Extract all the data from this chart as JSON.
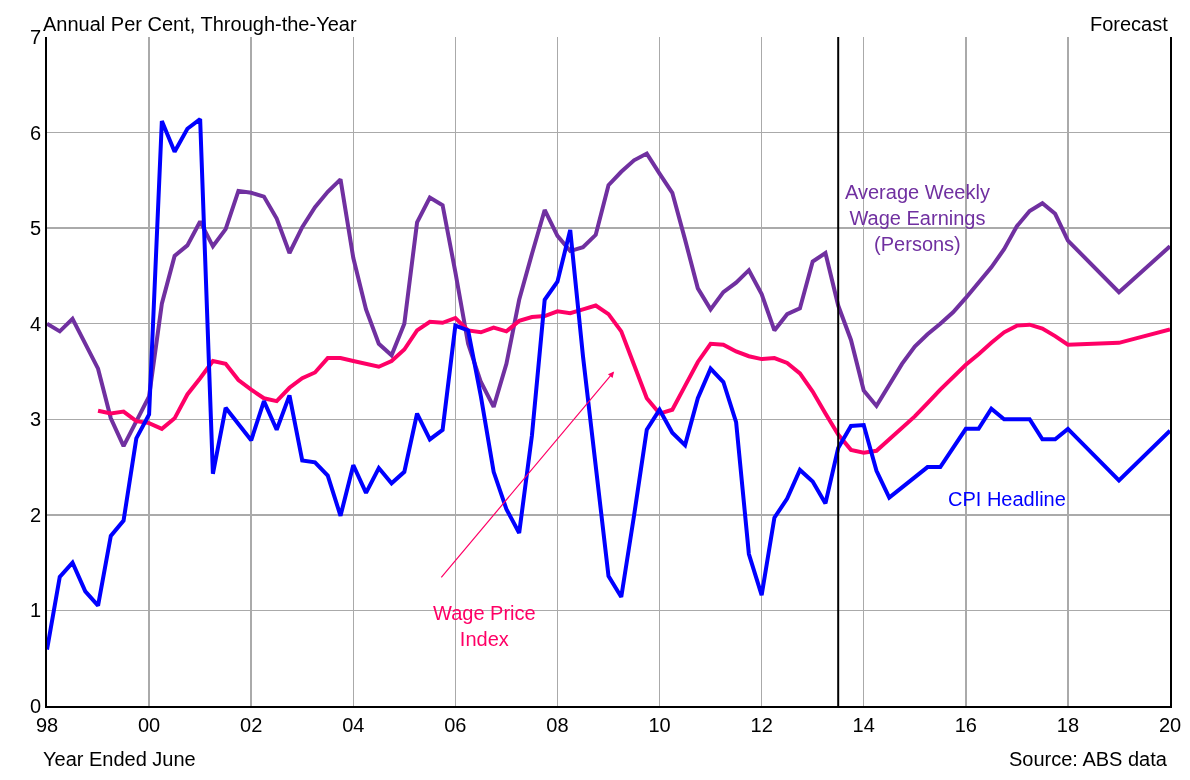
{
  "chart_data": {
    "type": "line",
    "ylabel": "Annual Per Cent, Through-the-Year",
    "xlabel": "Year Ended June",
    "xlim": [
      1998,
      2020
    ],
    "xticks": [
      {
        "value": 1998,
        "label": "98"
      },
      {
        "value": 2000,
        "label": "00"
      },
      {
        "value": 2002,
        "label": "02"
      },
      {
        "value": 2004,
        "label": "04"
      },
      {
        "value": 2006,
        "label": "06"
      },
      {
        "value": 2008,
        "label": "08"
      },
      {
        "value": 2010,
        "label": "10"
      },
      {
        "value": 2012,
        "label": "12"
      },
      {
        "value": 2014,
        "label": "14"
      },
      {
        "value": 2016,
        "label": "16"
      },
      {
        "value": 2018,
        "label": "18"
      },
      {
        "value": 2020,
        "label": "20"
      }
    ],
    "ylim": [
      0,
      7
    ],
    "yticks": [
      0,
      1,
      2,
      3,
      4,
      5,
      6,
      7
    ],
    "grid": true,
    "legend": false,
    "marker": "none",
    "line_style": "solid",
    "ref_lines": [
      {
        "axis": "x",
        "value": 2013.5,
        "color": "#000000"
      }
    ],
    "annotations": [
      "Forecast",
      "Source: ABS data"
    ],
    "series": [
      {
        "name": "Average Weekly\nWage Earnings\n(Persons)",
        "color": "#7030a0",
        "x": [
          1998,
          1998.25,
          1998.5,
          1999,
          1999.25,
          1999.5,
          2000,
          2000.25,
          2000.5,
          2000.75,
          2001,
          2001.25,
          2001.5,
          2001.75,
          2002,
          2002.25,
          2002.5,
          2002.75,
          2003,
          2003.25,
          2003.5,
          2003.75,
          2004,
          2004.25,
          2004.5,
          2004.75,
          2005,
          2005.25,
          2005.5,
          2005.75,
          2006,
          2006.25,
          2006.5,
          2006.75,
          2007,
          2007.25,
          2007.5,
          2007.75,
          2008,
          2008.25,
          2008.5,
          2008.75,
          2009,
          2009.25,
          2009.5,
          2009.75,
          2010,
          2010.25,
          2010.5,
          2010.75,
          2011,
          2011.25,
          2011.5,
          2011.75,
          2012,
          2012.25,
          2012.5,
          2012.75,
          2013,
          2013.25,
          2013.5,
          2013.75,
          2014,
          2014.25,
          2014.75,
          2015,
          2015.25,
          2015.5,
          2015.75,
          2016,
          2016.5,
          2016.75,
          2017,
          2017.25,
          2017.5,
          2017.75,
          2018,
          2019,
          2020
        ],
        "values": [
          4.0,
          3.92,
          4.05,
          3.53,
          3.01,
          2.72,
          3.24,
          4.21,
          4.71,
          4.82,
          5.07,
          4.81,
          4.99,
          5.39,
          5.37,
          5.33,
          5.1,
          4.74,
          5.01,
          5.22,
          5.38,
          5.51,
          4.69,
          4.15,
          3.79,
          3.67,
          4.0,
          5.06,
          5.32,
          5.24,
          4.54,
          3.79,
          3.39,
          3.13,
          3.58,
          4.25,
          4.73,
          5.19,
          4.92,
          4.76,
          4.8,
          4.93,
          5.45,
          5.59,
          5.71,
          5.78,
          5.57,
          5.37,
          4.88,
          4.37,
          4.15,
          4.33,
          4.43,
          4.56,
          4.31,
          3.93,
          4.1,
          4.16,
          4.65,
          4.74,
          4.19,
          3.83,
          3.3,
          3.14,
          3.58,
          3.76,
          3.89,
          4.0,
          4.12,
          4.27,
          4.59,
          4.78,
          5.02,
          5.18,
          5.26,
          5.15,
          4.87,
          4.33,
          4.81
        ]
      },
      {
        "name": "Wage Price\nIndex",
        "color": "#ff0066",
        "x": [
          1999,
          1999.25,
          1999.5,
          1999.75,
          2000,
          2000.25,
          2000.5,
          2000.75,
          2001,
          2001.25,
          2001.5,
          2001.75,
          2002,
          2002.25,
          2002.5,
          2002.75,
          2003,
          2003.25,
          2003.5,
          2003.75,
          2004,
          2004.5,
          2004.75,
          2005,
          2005.25,
          2005.5,
          2005.75,
          2006,
          2006.25,
          2006.5,
          2006.75,
          2007,
          2007.25,
          2007.5,
          2007.75,
          2008,
          2008.25,
          2008.5,
          2008.75,
          2009,
          2009.25,
          2009.5,
          2009.75,
          2010,
          2010.25,
          2010.5,
          2010.75,
          2011,
          2011.25,
          2011.5,
          2011.75,
          2012,
          2012.25,
          2012.5,
          2012.75,
          2013,
          2013.25,
          2013.5,
          2013.75,
          2014,
          2014.25,
          2015,
          2015.25,
          2015.5,
          2016,
          2016.25,
          2016.5,
          2016.75,
          2017,
          2017.25,
          2017.5,
          2017.75,
          2018,
          2019,
          2020
        ],
        "values": [
          3.09,
          3.06,
          3.08,
          2.98,
          2.96,
          2.9,
          3.01,
          3.26,
          3.43,
          3.61,
          3.58,
          3.41,
          3.31,
          3.22,
          3.19,
          3.33,
          3.43,
          3.49,
          3.64,
          3.64,
          3.61,
          3.55,
          3.61,
          3.73,
          3.93,
          4.02,
          4.01,
          4.06,
          3.93,
          3.91,
          3.96,
          3.92,
          4.03,
          4.07,
          4.08,
          4.13,
          4.11,
          4.15,
          4.19,
          4.1,
          3.92,
          3.57,
          3.22,
          3.06,
          3.1,
          3.35,
          3.6,
          3.79,
          3.78,
          3.71,
          3.66,
          3.63,
          3.64,
          3.59,
          3.48,
          3.29,
          3.06,
          2.84,
          2.68,
          2.65,
          2.67,
          3.03,
          3.17,
          3.31,
          3.57,
          3.68,
          3.8,
          3.91,
          3.98,
          3.99,
          3.95,
          3.87,
          3.78,
          3.8,
          3.94
        ]
      },
      {
        "name": "CPI Headline",
        "color": "#0000ff",
        "x": [
          1998,
          1998.25,
          1998.5,
          1998.75,
          1999,
          1999.25,
          1999.5,
          1999.75,
          2000,
          2000.25,
          2000.5,
          2000.75,
          2001,
          2001.25,
          2001.5,
          2002,
          2002.25,
          2002.5,
          2002.75,
          2003,
          2003.25,
          2003.5,
          2003.75,
          2004,
          2004.25,
          2004.5,
          2004.75,
          2005,
          2005.25,
          2005.5,
          2005.75,
          2006,
          2006.25,
          2006.5,
          2006.75,
          2007,
          2007.25,
          2007.5,
          2007.75,
          2008,
          2008.25,
          2008.5,
          2009,
          2009.25,
          2009.5,
          2009.75,
          2010,
          2010.25,
          2010.5,
          2010.75,
          2011,
          2011.25,
          2011.5,
          2011.75,
          2012,
          2012.25,
          2012.5,
          2012.75,
          2013,
          2013.25,
          2013.5,
          2013.75,
          2014,
          2014.25,
          2014.5,
          2015.25,
          2015.5,
          2016,
          2016.25,
          2016.5,
          2016.75,
          2017.25,
          2017.5,
          2017.75,
          2018,
          2019,
          2020
        ],
        "values": [
          0.59,
          1.35,
          1.5,
          1.2,
          1.05,
          1.78,
          1.94,
          2.8,
          3.05,
          6.12,
          5.8,
          6.04,
          6.14,
          2.43,
          3.12,
          2.78,
          3.19,
          2.89,
          3.25,
          2.57,
          2.55,
          2.41,
          1.99,
          2.52,
          2.23,
          2.49,
          2.33,
          2.45,
          3.06,
          2.79,
          2.89,
          3.98,
          3.93,
          3.24,
          2.45,
          2.06,
          1.81,
          2.83,
          4.25,
          4.44,
          4.98,
          3.66,
          1.36,
          1.14,
          1.99,
          2.89,
          3.1,
          2.86,
          2.73,
          3.22,
          3.53,
          3.39,
          2.97,
          1.59,
          1.16,
          1.97,
          2.17,
          2.47,
          2.35,
          2.12,
          2.7,
          2.93,
          2.94,
          2.46,
          2.18,
          2.5,
          2.5,
          2.9,
          2.9,
          3.11,
          3.0,
          3.0,
          2.79,
          2.79,
          2.9,
          2.36,
          2.88
        ]
      }
    ]
  }
}
